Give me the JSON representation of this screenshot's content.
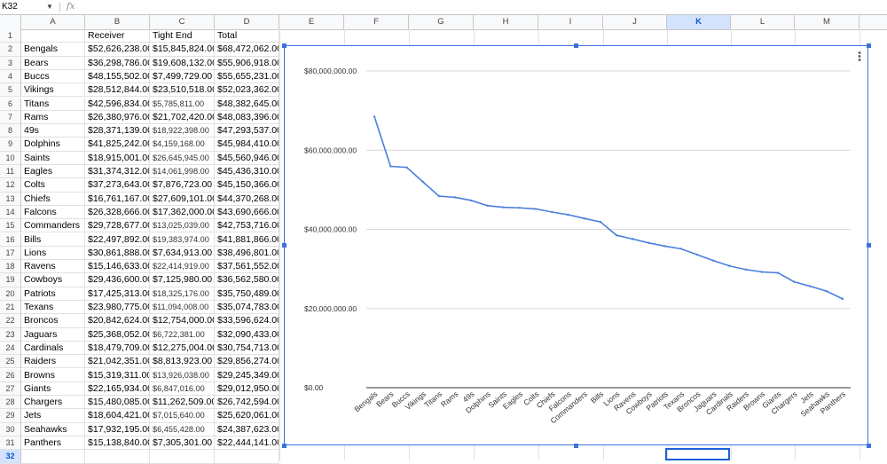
{
  "formula_bar": {
    "name_box": "K32",
    "fx_label": "fx",
    "formula": ""
  },
  "columns": [
    "A",
    "B",
    "C",
    "D",
    "E",
    "F",
    "G",
    "H",
    "I",
    "J",
    "K",
    "L",
    "M"
  ],
  "selected_column": "K",
  "selected_row": "32",
  "header_row": [
    "",
    "Receiver",
    "Tight End",
    "Total"
  ],
  "rows": [
    {
      "team": "Bengals",
      "receiver": "$52,626,238.00",
      "tight_end": "$15,845,824.00",
      "total": "$68,472,062.00",
      "te_small": false
    },
    {
      "team": "Bears",
      "receiver": "$36,298,786.00",
      "tight_end": "$19,608,132.00",
      "total": "$55,906,918.00",
      "te_small": false
    },
    {
      "team": "Buccs",
      "receiver": "$48,155,502.00",
      "tight_end": "$7,499,729.00",
      "total": "$55,655,231.00",
      "te_small": false
    },
    {
      "team": "Vikings",
      "receiver": "$28,512,844.00",
      "tight_end": "$23,510,518.00",
      "total": "$52,023,362.00",
      "te_small": false
    },
    {
      "team": "Titans",
      "receiver": "$42,596,834.00",
      "tight_end": "$5,785,811.00",
      "total": "$48,382,645.00",
      "te_small": true
    },
    {
      "team": "Rams",
      "receiver": "$26,380,976.00",
      "tight_end": "$21,702,420.00",
      "total": "$48,083,396.00",
      "te_small": false
    },
    {
      "team": "49s",
      "receiver": "$28,371,139.00",
      "tight_end": "$18,922,398.00",
      "total": "$47,293,537.00",
      "te_small": true
    },
    {
      "team": "Dolphins",
      "receiver": "$41,825,242.00",
      "tight_end": "$4,159,168.00",
      "total": "$45,984,410.00",
      "te_small": true
    },
    {
      "team": "Saints",
      "receiver": "$18,915,001.00",
      "tight_end": "$26,645,945.00",
      "total": "$45,560,946.00",
      "te_small": true
    },
    {
      "team": "Eagles",
      "receiver": "$31,374,312.00",
      "tight_end": "$14,061,998.00",
      "total": "$45,436,310.00",
      "te_small": true
    },
    {
      "team": "Colts",
      "receiver": "$37,273,643.00",
      "tight_end": "$7,876,723.00",
      "total": "$45,150,366.00",
      "te_small": false
    },
    {
      "team": "Chiefs",
      "receiver": "$16,761,167.00",
      "tight_end": "$27,609,101.00",
      "total": "$44,370,268.00",
      "te_small": false
    },
    {
      "team": "Falcons",
      "receiver": "$26,328,666.00",
      "tight_end": "$17,362,000.00",
      "total": "$43,690,666.00",
      "te_small": false
    },
    {
      "team": "Commanders",
      "receiver": "$29,728,677.00",
      "tight_end": "$13,025,039.00",
      "total": "$42,753,716.00",
      "te_small": true
    },
    {
      "team": "Bills",
      "receiver": "$22,497,892.00",
      "tight_end": "$19,383,974.00",
      "total": "$41,881,866.00",
      "te_small": true
    },
    {
      "team": "Lions",
      "receiver": "$30,861,888.00",
      "tight_end": "$7,634,913.00",
      "total": "$38,496,801.00",
      "te_small": false
    },
    {
      "team": "Ravens",
      "receiver": "$15,146,633.00",
      "tight_end": "$22,414,919.00",
      "total": "$37,561,552.00",
      "te_small": true
    },
    {
      "team": "Cowboys",
      "receiver": "$29,436,600.00",
      "tight_end": "$7,125,980.00",
      "total": "$36,562,580.00",
      "te_small": false
    },
    {
      "team": "Patriots",
      "receiver": "$17,425,313.00",
      "tight_end": "$18,325,176.00",
      "total": "$35,750,489.00",
      "te_small": true
    },
    {
      "team": "Texans",
      "receiver": "$23,980,775.00",
      "tight_end": "$11,094,008.00",
      "total": "$35,074,783.00",
      "te_small": true
    },
    {
      "team": "Broncos",
      "receiver": "$20,842,624.00",
      "tight_end": "$12,754,000.00",
      "total": "$33,596,624.00",
      "te_small": false
    },
    {
      "team": "Jaguars",
      "receiver": "$25,368,052.00",
      "tight_end": "$6,722,381.00",
      "total": "$32,090,433.00",
      "te_small": true
    },
    {
      "team": "Cardinals",
      "receiver": "$18,479,709.00",
      "tight_end": "$12,275,004.00",
      "total": "$30,754,713.00",
      "te_small": false
    },
    {
      "team": "Raiders",
      "receiver": "$21,042,351.00",
      "tight_end": "$8,813,923.00",
      "total": "$29,856,274.00",
      "te_small": false
    },
    {
      "team": "Browns",
      "receiver": "$15,319,311.00",
      "tight_end": "$13,926,038.00",
      "total": "$29,245,349.00",
      "te_small": true
    },
    {
      "team": "Giants",
      "receiver": "$22,165,934.00",
      "tight_end": "$6,847,016.00",
      "total": "$29,012,950.00",
      "te_small": true
    },
    {
      "team": "Chargers",
      "receiver": "$15,480,085.00",
      "tight_end": "$11,262,509.00",
      "total": "$26,742,594.00",
      "te_small": false
    },
    {
      "team": "Jets",
      "receiver": "$18,604,421.00",
      "tight_end": "$7,015,640.00",
      "total": "$25,620,061.00",
      "te_small": true
    },
    {
      "team": "Seahawks",
      "receiver": "$17,932,195.00",
      "tight_end": "$6,455,428.00",
      "total": "$24,387,623.00",
      "te_small": true
    },
    {
      "team": "Panthers",
      "receiver": "$15,138,840.00",
      "tight_end": "$7,305,301.00",
      "total": "$22,444,141.00",
      "te_small": false
    }
  ],
  "colors": {
    "line": "#4a7fdc",
    "selection": "#1a5fd8",
    "grid": "#d9d9d9"
  },
  "chart_data": {
    "type": "line",
    "title": "",
    "xlabel": "",
    "ylabel": "",
    "ylim": [
      0,
      80000000
    ],
    "yticks": [
      0,
      20000000,
      40000000,
      60000000,
      80000000
    ],
    "ytick_labels": [
      "$0.00",
      "$20,000,000.00",
      "$40,000,000.00",
      "$60,000,000.00",
      "$80,000,000.00"
    ],
    "grid": true,
    "legend": "none",
    "categories": [
      "Bengals",
      "Bears",
      "Buccs",
      "Vikings",
      "Titans",
      "Rams",
      "49s",
      "Dolphins",
      "Saints",
      "Eagles",
      "Colts",
      "Chiefs",
      "Falcons",
      "Commanders",
      "Bills",
      "Lions",
      "Ravens",
      "Cowboys",
      "Patriots",
      "Texans",
      "Broncos",
      "Jaguars",
      "Cardinals",
      "Raiders",
      "Browns",
      "Giants",
      "Chargers",
      "Jets",
      "Seahawks",
      "Panthers"
    ],
    "series": [
      {
        "values": [
          68472062,
          55906918,
          55655231,
          52023362,
          48382645,
          48083396,
          47293537,
          45984410,
          45560946,
          45436310,
          45150366,
          44370268,
          43690666,
          42753716,
          41881866,
          38496801,
          37561552,
          36562580,
          35750489,
          35074783,
          33596624,
          32090433,
          30754713,
          29856274,
          29245349,
          29012950,
          26742594,
          25620061,
          24387623,
          22444141
        ]
      }
    ]
  }
}
